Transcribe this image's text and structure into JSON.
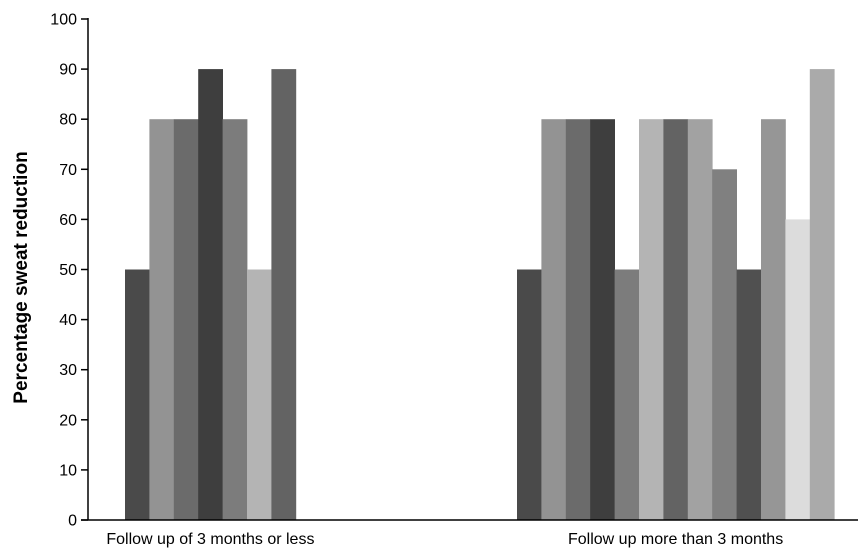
{
  "chart_data": {
    "type": "bar",
    "title": "",
    "xlabel": "",
    "ylabel": "Percentage sweat reduction",
    "ylim": [
      0,
      100
    ],
    "yticks": [
      0,
      10,
      20,
      30,
      40,
      50,
      60,
      70,
      80,
      90,
      100
    ],
    "grid": false,
    "legend": "none",
    "groups": [
      {
        "label": "Follow up of 3 months or less",
        "bars": [
          {
            "value": 50,
            "color": "#4a4a4a"
          },
          {
            "value": 80,
            "color": "#939393"
          },
          {
            "value": 80,
            "color": "#6b6b6b"
          },
          {
            "value": 90,
            "color": "#3e3e3e"
          },
          {
            "value": 80,
            "color": "#7c7c7c"
          },
          {
            "value": 50,
            "color": "#b4b4b4"
          },
          {
            "value": 90,
            "color": "#636363"
          }
        ]
      },
      {
        "label": "Follow up more than 3 months",
        "bars": [
          {
            "value": 50,
            "color": "#4a4a4a"
          },
          {
            "value": 80,
            "color": "#939393"
          },
          {
            "value": 80,
            "color": "#6b6b6b"
          },
          {
            "value": 80,
            "color": "#3e3e3e"
          },
          {
            "value": 50,
            "color": "#7c7c7c"
          },
          {
            "value": 80,
            "color": "#b4b4b4"
          },
          {
            "value": 80,
            "color": "#636363"
          },
          {
            "value": 80,
            "color": "#a2a2a2"
          },
          {
            "value": 70,
            "color": "#808080"
          },
          {
            "value": 50,
            "color": "#505050"
          },
          {
            "value": 80,
            "color": "#969696"
          },
          {
            "value": 60,
            "color": "#dcdcdc"
          },
          {
            "value": 90,
            "color": "#aaaaaa"
          }
        ]
      }
    ]
  }
}
